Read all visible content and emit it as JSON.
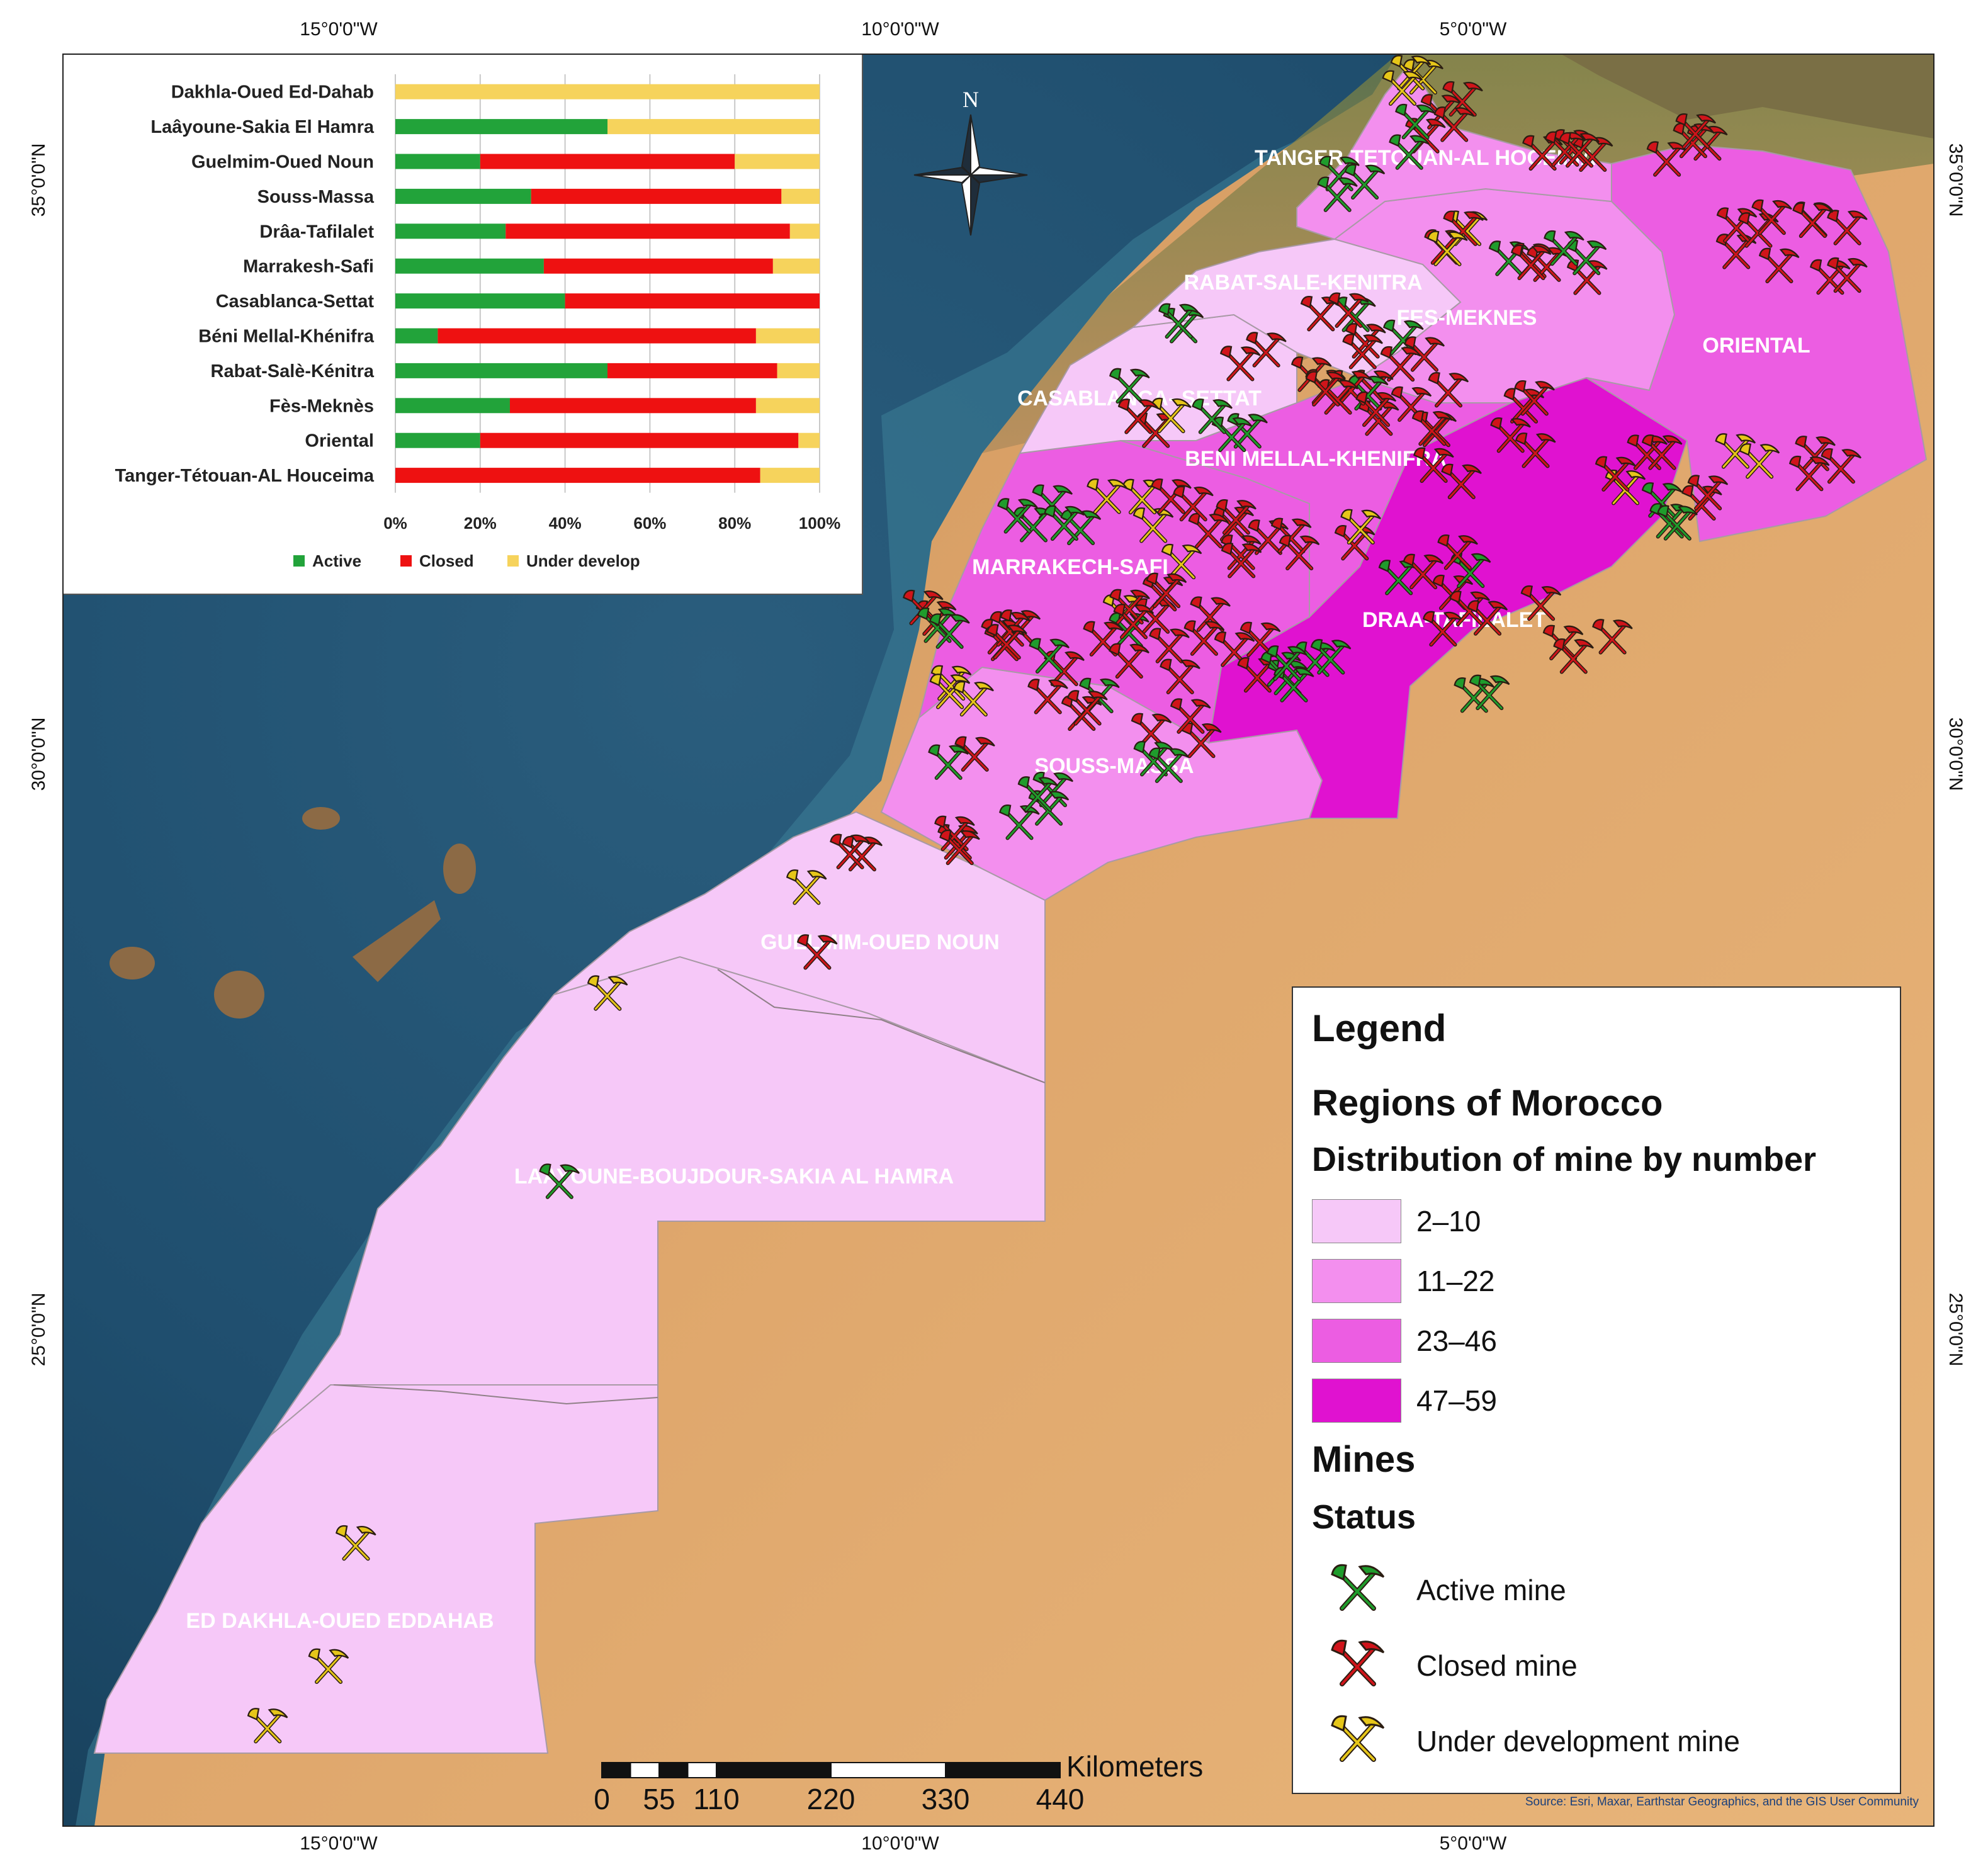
{
  "coordinates": {
    "top": [
      "15°0'0\"W",
      "10°0'0\"W",
      "5°0'0\"W"
    ],
    "bottom": [
      "15°0'0\"W",
      "10°0'0\"W",
      "5°0'0\"W"
    ],
    "left": [
      "35°0'0\"N",
      "30°0'0\"N",
      "25°0'0\"N"
    ],
    "right": [
      "35°0'0\"N",
      "30°0'0\"N",
      "25°0'0\"N"
    ]
  },
  "north_arrow": {
    "label": "N"
  },
  "regions": [
    {
      "label": "TANGER-TETOUAN-AL HOCEIMA",
      "class": "11–22"
    },
    {
      "label": "ORIENTAL",
      "class": "23–46"
    },
    {
      "label": "FES-MEKNES",
      "class": "11–22"
    },
    {
      "label": "RABAT-SALE-KENITRA",
      "class": "2–10"
    },
    {
      "label": "CASABLANCA- SETTAT",
      "class": "2–10"
    },
    {
      "label": "BENI MELLAL-KHENIFRA",
      "class": "23–46"
    },
    {
      "label": "MARRAKECH-SAFI",
      "class": "23–46"
    },
    {
      "label": "DRAA-TAFILALET",
      "class": "47–59"
    },
    {
      "label": "SOUSS-MASSA",
      "class": "11–22"
    },
    {
      "label": "GUELMIM-OUED NOUN",
      "class": "2–10"
    },
    {
      "label": "LAAYOUNE-BOUJDOUR-SAKIA AL HAMRA",
      "class": "2–10"
    },
    {
      "label": "ED DAKHLA-OUED EDDAHAB",
      "class": "2–10"
    }
  ],
  "inset_chart": {
    "categories": [
      "Dakhla-Oued Ed-Dahab",
      "Laâyoune-Sakia El Hamra",
      "Guelmim-Oued Noun",
      "Souss-Massa",
      "Drâa-Tafilalet",
      "Marrakesh-Safi",
      "Casablanca-Settat",
      "Béni Mellal-Khénifra",
      "Rabat-Salè-Kénitra",
      "Fès-Meknès",
      "Oriental",
      "Tanger-Tétouan-AL Houceima"
    ],
    "x_ticks": [
      "0%",
      "20%",
      "40%",
      "60%",
      "80%",
      "100%"
    ],
    "series": [
      {
        "name": "Active",
        "color": "#22a33a",
        "values": [
          0,
          50,
          20,
          32,
          26,
          35,
          40,
          10,
          50,
          27,
          20,
          0
        ]
      },
      {
        "name": "Closed",
        "color": "#ee1111",
        "values": [
          0,
          0,
          60,
          59,
          67,
          54,
          60,
          75,
          40,
          58,
          75,
          86
        ]
      },
      {
        "name": "Under develop",
        "color": "#f6d35c",
        "values": [
          100,
          50,
          20,
          9,
          7,
          11,
          0,
          15,
          10,
          15,
          5,
          14
        ]
      }
    ]
  },
  "legend": {
    "title": "Legend",
    "subtitle": "Regions of Morocco",
    "distribution_title": "Distribution of mine by number",
    "classes": [
      {
        "label": "2–10",
        "color": "#f6c8f8"
      },
      {
        "label": "11–22",
        "color": "#f38fee"
      },
      {
        "label": "23–46",
        "color": "#ec5de2"
      },
      {
        "label": "47–59",
        "color": "#e012d0"
      }
    ],
    "mines_title": "Mines",
    "status_title": "Status",
    "status": [
      {
        "label": "Active mine",
        "color": "#1f9c2c",
        "icon": "active-mine-icon"
      },
      {
        "label": "Closed mine",
        "color": "#d0141a",
        "icon": "closed-mine-icon"
      },
      {
        "label": "Under development mine",
        "color": "#e6c619",
        "icon": "under-development-mine-icon"
      }
    ]
  },
  "scale_bar": {
    "ticks": [
      "0",
      "55",
      "110",
      "220",
      "330",
      "440"
    ],
    "unit": "Kilometers"
  },
  "source": "Source: Esri, Maxar, Earthstar Geographics, and the GIS User Community"
}
